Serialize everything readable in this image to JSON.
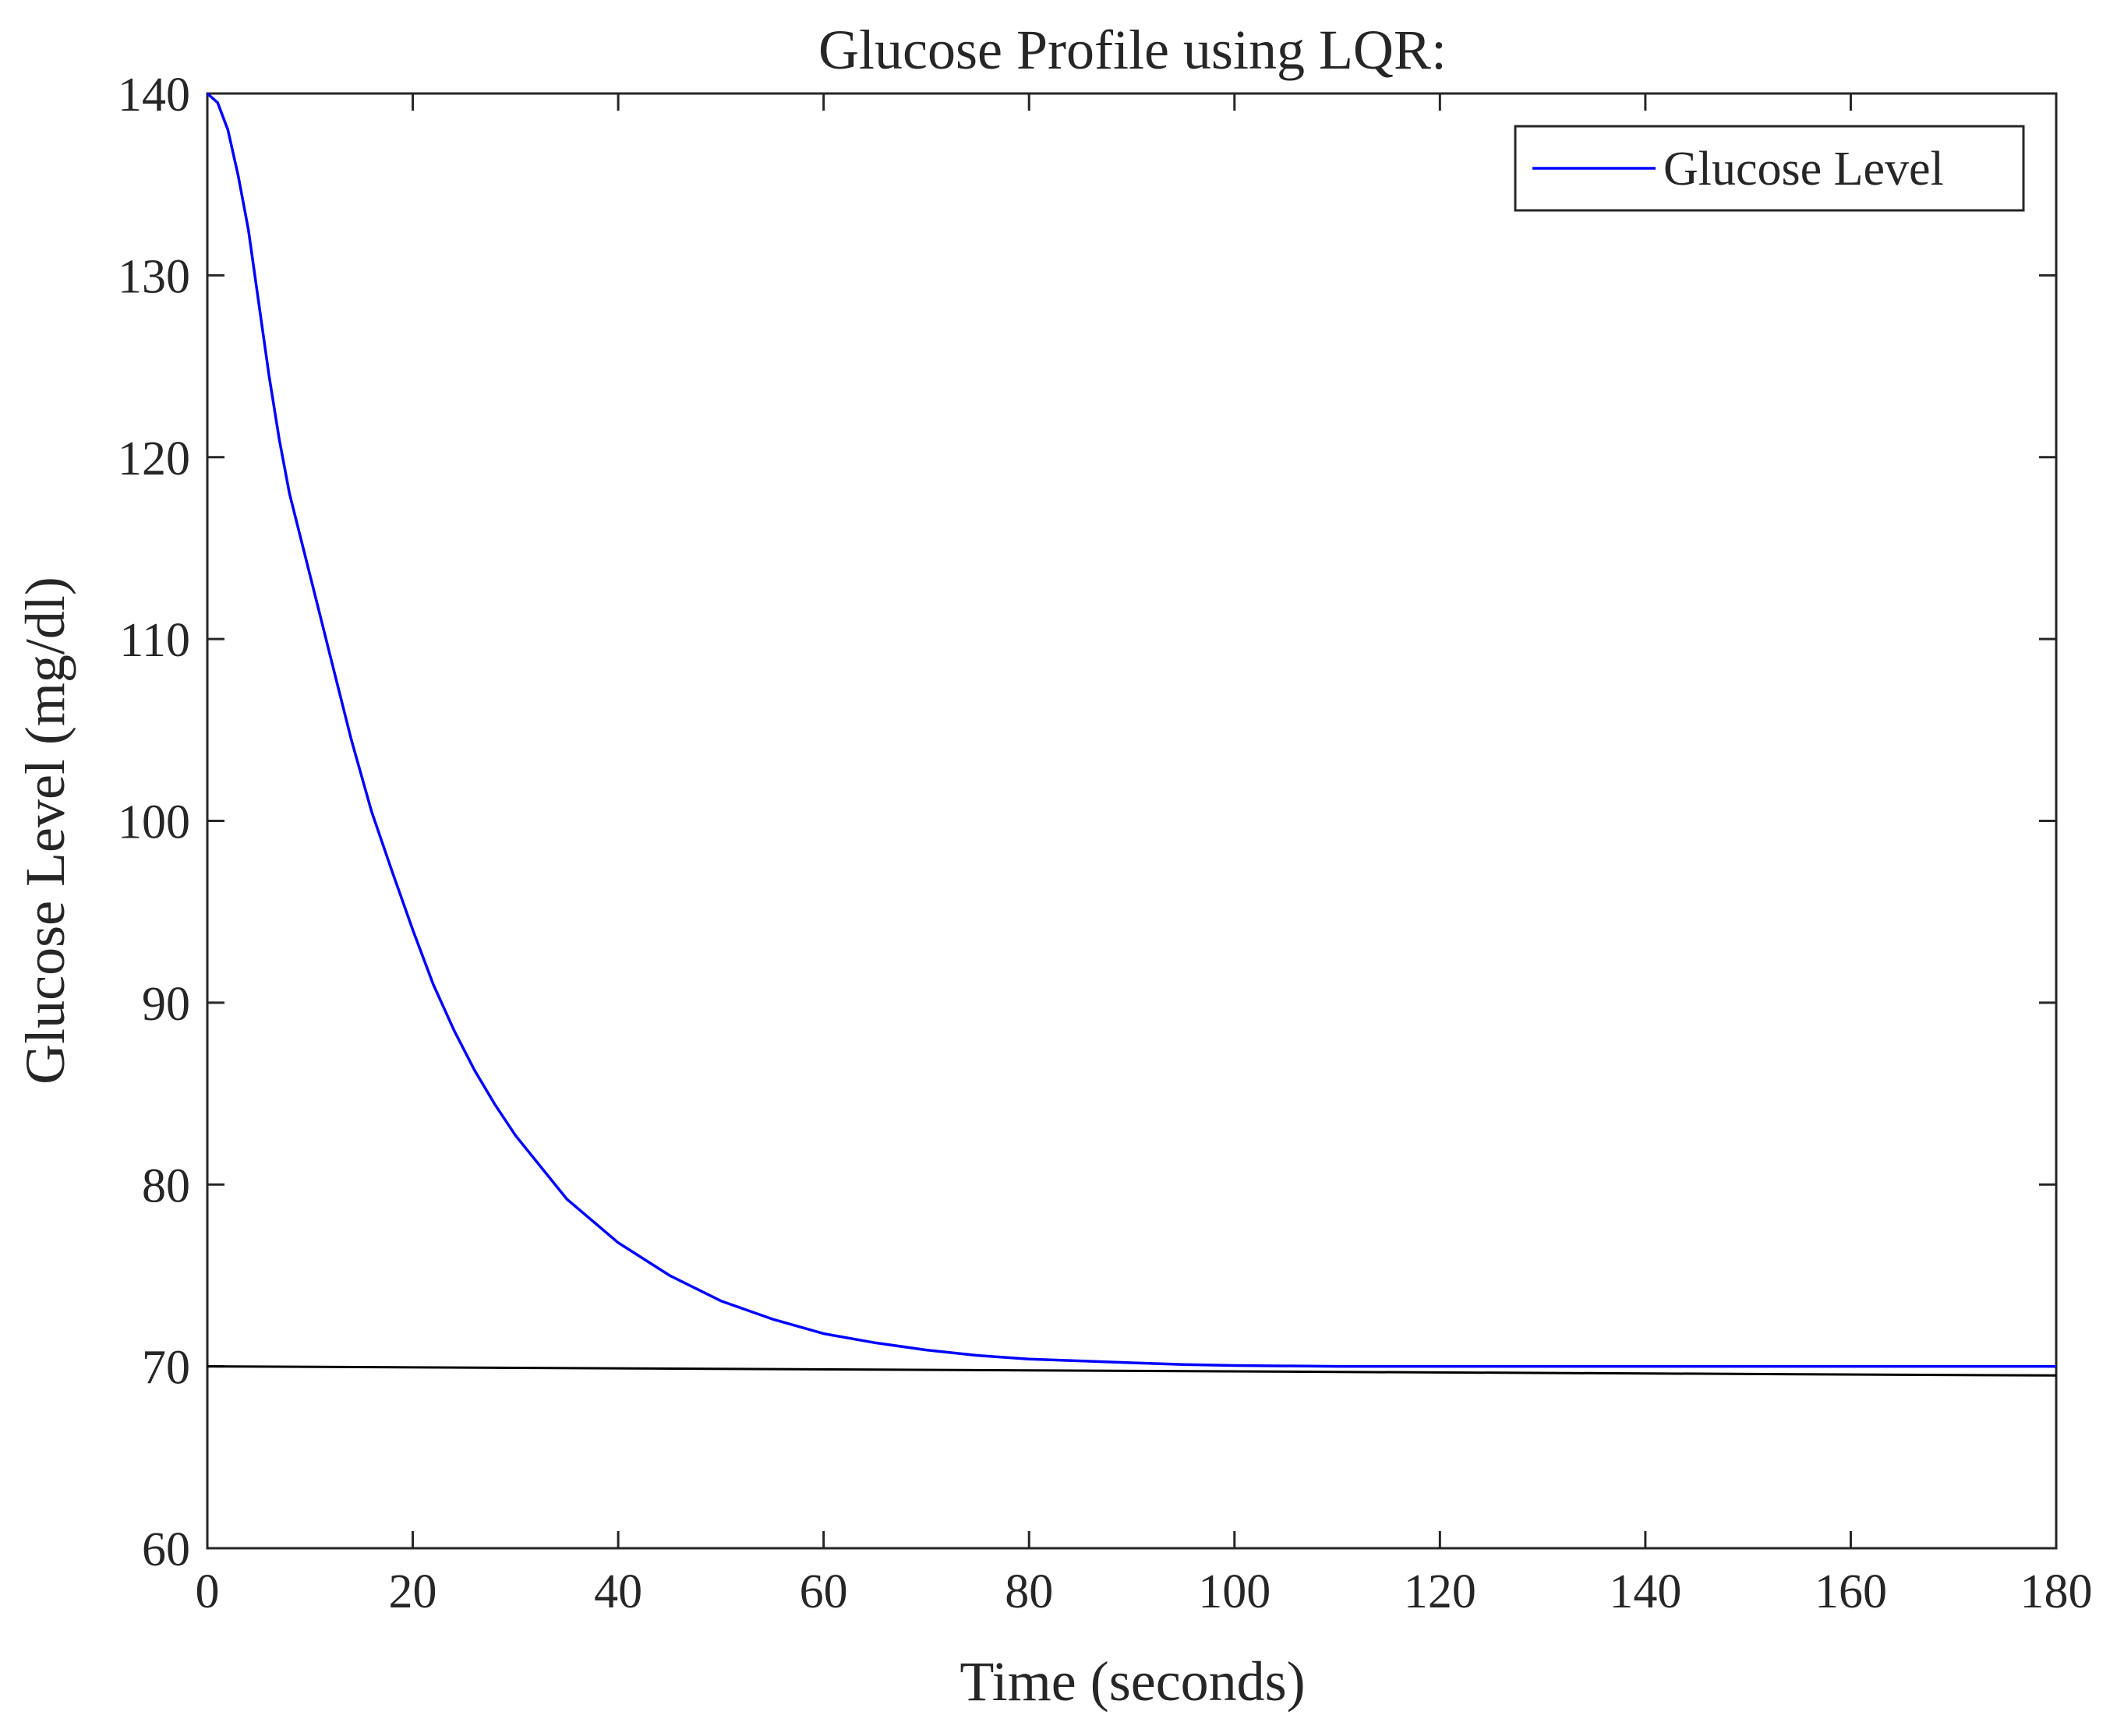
{
  "chart_data": {
    "type": "line",
    "title": "Glucose Profile using LQR:",
    "xlabel": "Time (seconds)",
    "ylabel": "Glucose Level (mg/dl)",
    "xlim": [
      0,
      180
    ],
    "ylim": [
      60,
      140
    ],
    "xticks": [
      0,
      20,
      40,
      60,
      80,
      100,
      120,
      140,
      160,
      180
    ],
    "yticks": [
      60,
      70,
      80,
      90,
      100,
      110,
      120,
      130,
      140
    ],
    "xtick_labels": [
      "0",
      "20",
      "40",
      "60",
      "80",
      "100",
      "120",
      "140",
      "160",
      "180"
    ],
    "ytick_labels": [
      "60",
      "70",
      "80",
      "90",
      "100",
      "110",
      "120",
      "130",
      "140"
    ],
    "grid": false,
    "legend_position": "top-right",
    "series": [
      {
        "name": "Glucose Level",
        "color": "#0000ff",
        "in_legend": true,
        "x": [
          0,
          1,
          2,
          3,
          4,
          5,
          6,
          7,
          8,
          10,
          12,
          14,
          16,
          18,
          20,
          22,
          24,
          26,
          28,
          30,
          35,
          40,
          45,
          50,
          55,
          60,
          65,
          70,
          75,
          80,
          85,
          90,
          95,
          100,
          110,
          120,
          130,
          140,
          150,
          160,
          170,
          180
        ],
        "y": [
          140,
          139.5,
          138,
          135.5,
          132.5,
          128.5,
          124.5,
          121,
          118,
          113.5,
          109,
          104.5,
          100.5,
          97.2,
          94,
          91,
          88.5,
          86.3,
          84.4,
          82.7,
          79.2,
          76.8,
          75,
          73.6,
          72.6,
          71.8,
          71.3,
          70.9,
          70.6,
          70.4,
          70.3,
          70.2,
          70.1,
          70.05,
          70.0,
          70.0,
          70.0,
          70.0,
          70.0,
          70.0,
          70.0,
          70.0
        ]
      },
      {
        "name": "",
        "color": "#000000",
        "in_legend": false,
        "x": [
          0,
          180
        ],
        "y": [
          70,
          69.5
        ]
      }
    ]
  }
}
